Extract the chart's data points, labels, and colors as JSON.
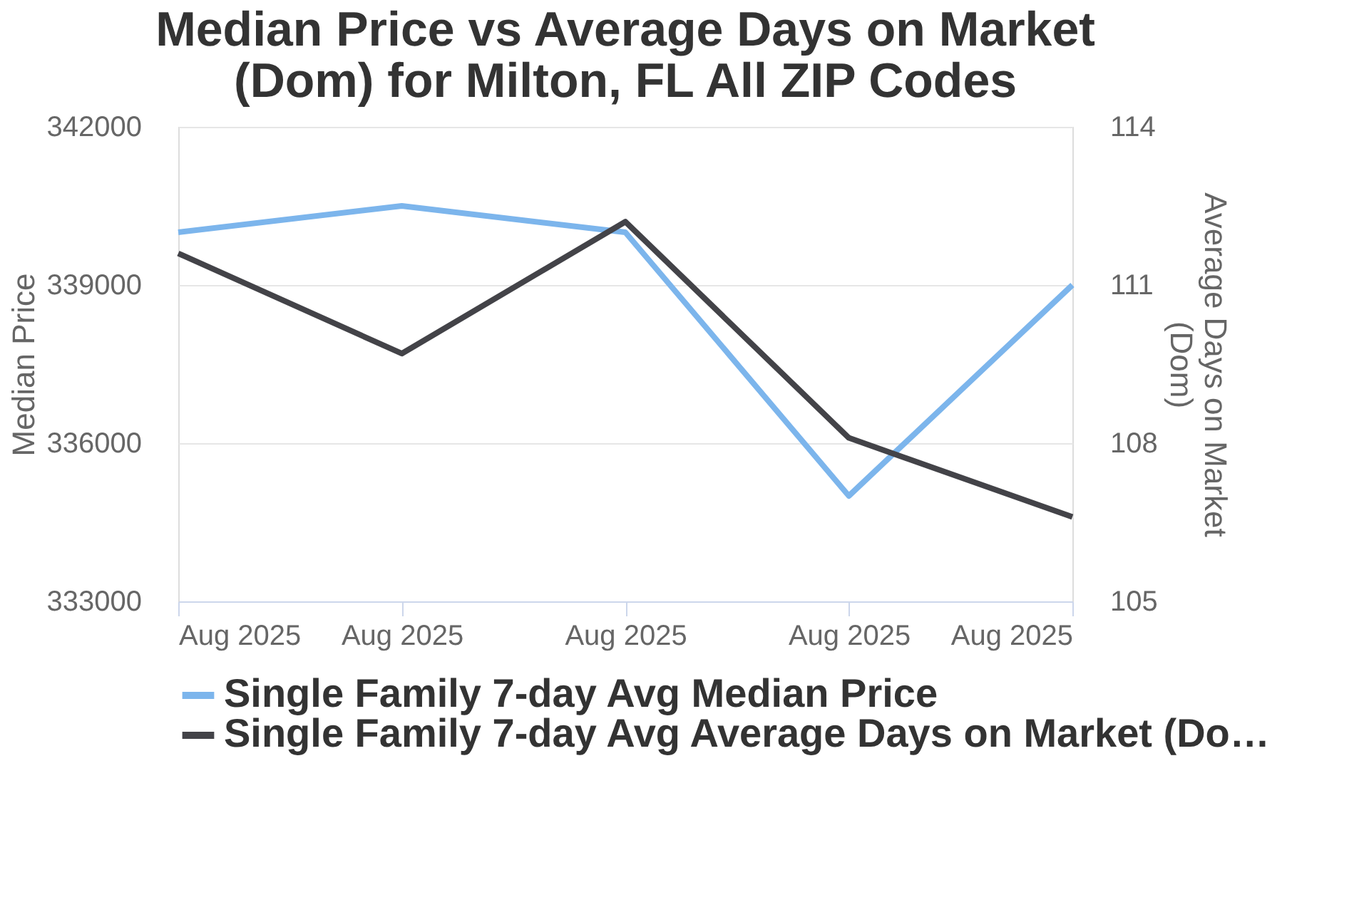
{
  "chart_data": {
    "type": "line",
    "title": "Median Price vs Average Days on Market\n(Dom) for Milton, FL All ZIP Codes",
    "categories": [
      "Aug 2025",
      "Aug 2025",
      "Aug 2025",
      "Aug 2025",
      "Aug 2025"
    ],
    "ylabel": "Median Price",
    "y2label": "Average Days on Market\n(Dom)",
    "ylim": [
      333000,
      342000
    ],
    "yticks": [
      333000,
      336000,
      339000,
      342000
    ],
    "y2lim": [
      105,
      114
    ],
    "y2ticks": [
      105,
      108,
      111,
      114
    ],
    "series": [
      {
        "name": "Single Family 7-day Avg Median Price",
        "color": "#7cb5ec",
        "values": [
          340000,
          340500,
          340000,
          335000,
          339000
        ]
      },
      {
        "name": "Single Family 7-day Avg Average Days on Market (Do…",
        "color": "#434348",
        "axis": "y2",
        "values": [
          111.6,
          109.7,
          112.2,
          108.1,
          106.6
        ]
      }
    ],
    "grid": "y",
    "legend": "bottom",
    "marker": "none",
    "line_style": "solid"
  }
}
